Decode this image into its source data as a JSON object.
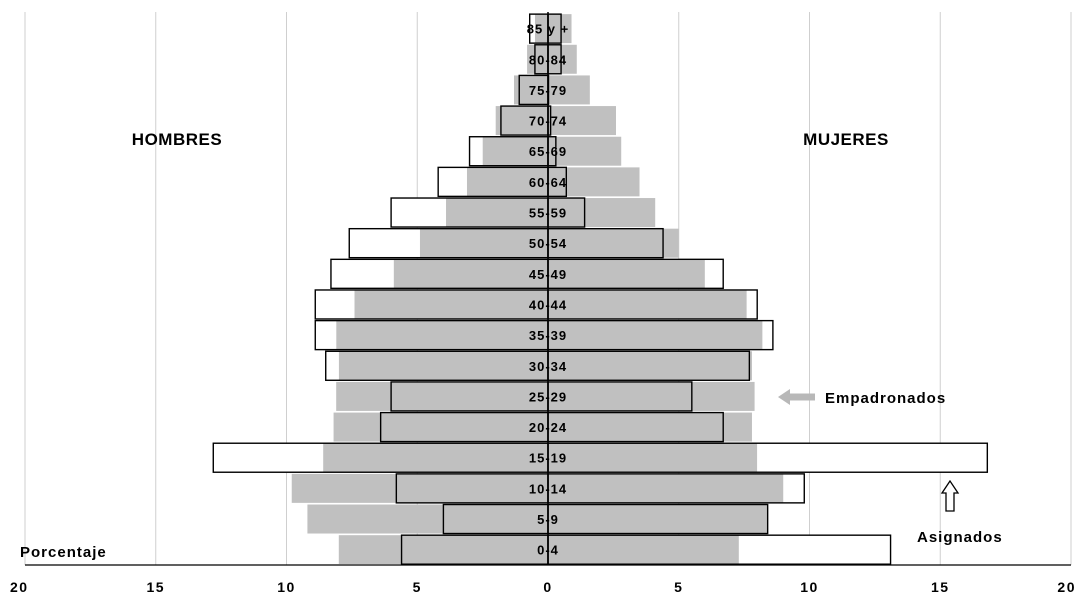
{
  "chart_data": {
    "type": "bar",
    "orientation": "horizontal",
    "subtype": "population-pyramid",
    "title": "",
    "xlabel": "Porcentaje",
    "ylabel": "",
    "xlim": [
      -20,
      20
    ],
    "x_ticks": [
      {
        "value": -20,
        "label": "20"
      },
      {
        "value": -15,
        "label": "15"
      },
      {
        "value": -10,
        "label": "10"
      },
      {
        "value": -5,
        "label": "5"
      },
      {
        "value": 0,
        "label": "0"
      },
      {
        "value": 5,
        "label": "5"
      },
      {
        "value": 10,
        "label": "10"
      },
      {
        "value": 15,
        "label": "15"
      },
      {
        "value": 20,
        "label": "20"
      }
    ],
    "grid": true,
    "side_labels": {
      "left": "HOMBRES",
      "right": "MUJERES"
    },
    "categories": [
      "0-4",
      "5-9",
      "10-14",
      "15-19",
      "20-24",
      "25-29",
      "30-34",
      "35-39",
      "40-44",
      "45-49",
      "50-54",
      "55-59",
      "60-64",
      "65-69",
      "70-74",
      "75-79",
      "80-84",
      "85 y +"
    ],
    "series": [
      {
        "name": "Empadronados",
        "color": "#c0c0c0",
        "style": "filled",
        "hombres": [
          8.0,
          9.2,
          9.8,
          8.6,
          8.2,
          8.1,
          8.0,
          8.1,
          7.4,
          5.9,
          4.9,
          3.9,
          3.1,
          2.5,
          2.0,
          1.3,
          0.8,
          0.5
        ],
        "mujeres": [
          7.3,
          8.4,
          9.0,
          8.0,
          7.8,
          7.9,
          7.8,
          8.2,
          7.6,
          6.0,
          5.0,
          4.1,
          3.5,
          2.8,
          2.6,
          1.6,
          1.1,
          0.9
        ]
      },
      {
        "name": "Asignados",
        "color": "#000000",
        "style": "outline",
        "hombres": [
          5.6,
          4.0,
          5.8,
          12.8,
          6.4,
          6.0,
          8.5,
          8.9,
          8.9,
          8.3,
          7.6,
          6.0,
          4.2,
          3.0,
          1.8,
          1.1,
          0.5,
          0.7
        ],
        "mujeres": [
          13.1,
          8.4,
          9.8,
          16.8,
          6.7,
          5.5,
          7.7,
          8.6,
          8.0,
          6.7,
          4.4,
          1.4,
          0.7,
          0.3,
          0.1,
          0.0,
          0.5,
          0.5
        ]
      }
    ],
    "annotations": [
      {
        "text": "Empadronados",
        "arrow": "left"
      },
      {
        "text": "Asignados",
        "arrow": "up"
      }
    ]
  }
}
